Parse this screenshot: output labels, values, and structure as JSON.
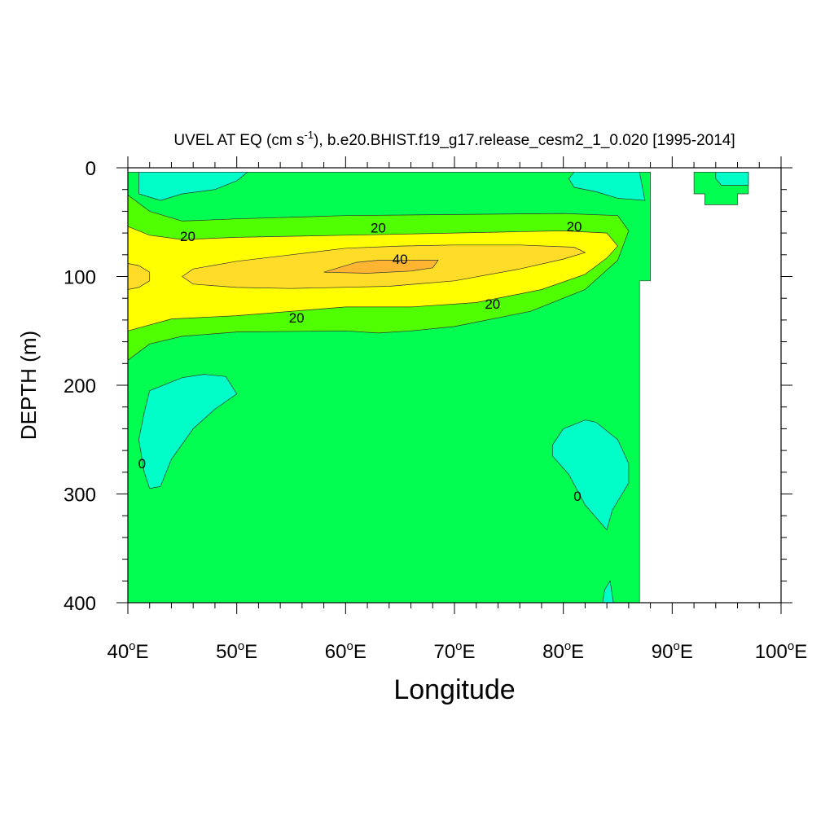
{
  "chart_data": {
    "type": "contour",
    "title_prefix": "UVEL AT EQ (cm s",
    "title_exponent": "-1",
    "title_suffix": "), b.e20.BHIST.f19_g17.release_cesm2_1_0.020 [1995-2014]",
    "xlabel": "Longitude",
    "ylabel": "DEPTH (m)",
    "xlim": [
      40,
      100
    ],
    "ylim": [
      0,
      400
    ],
    "y_inverted": true,
    "x_ticks": [
      {
        "value": 40,
        "label": "40",
        "sup": "o",
        "suffix": "E"
      },
      {
        "value": 50,
        "label": "50",
        "sup": "o",
        "suffix": "E"
      },
      {
        "value": 60,
        "label": "60",
        "sup": "o",
        "suffix": "E"
      },
      {
        "value": 70,
        "label": "70",
        "sup": "o",
        "suffix": "E"
      },
      {
        "value": 80,
        "label": "80",
        "sup": "o",
        "suffix": "E"
      },
      {
        "value": 90,
        "label": "90",
        "sup": "o",
        "suffix": "E"
      },
      {
        "value": 100,
        "label": "100",
        "sup": "o",
        "suffix": "E"
      }
    ],
    "y_ticks": [
      {
        "value": 0,
        "label": "0"
      },
      {
        "value": 100,
        "label": "100"
      },
      {
        "value": 200,
        "label": "200"
      },
      {
        "value": 300,
        "label": "300"
      },
      {
        "value": 400,
        "label": "400"
      }
    ],
    "contour_interval": 10,
    "colors": {
      "negative": "#00ffc8",
      "0_to_10": "#00ff50",
      "10_to_20": "#50ff00",
      "20_to_30": "#ffff00",
      "30_to_40": "#ffdc28",
      "40_to_50": "#ffb432"
    },
    "regions": [
      {
        "name": "ocean-0-10",
        "color_key": "0_to_10",
        "points": [
          [
            40,
            4
          ],
          [
            88,
            4
          ],
          [
            88,
            104
          ],
          [
            87,
            104
          ],
          [
            87,
            400
          ],
          [
            40,
            400
          ]
        ]
      },
      {
        "name": "ocean-0-10-east-patch",
        "color_key": "0_to_10",
        "points": [
          [
            92,
            4
          ],
          [
            97,
            4
          ],
          [
            97,
            24
          ],
          [
            96,
            24
          ],
          [
            96,
            34
          ],
          [
            93,
            34
          ],
          [
            93,
            24
          ],
          [
            92,
            24
          ]
        ]
      },
      {
        "name": "neg-surface-west",
        "color_key": "negative",
        "points": [
          [
            41,
            4
          ],
          [
            51,
            4
          ],
          [
            50,
            12
          ],
          [
            48,
            20
          ],
          [
            45,
            24
          ],
          [
            43,
            30
          ],
          [
            41,
            24
          ]
        ]
      },
      {
        "name": "neg-surface-east",
        "color_key": "negative",
        "points": [
          [
            81,
            4
          ],
          [
            86,
            4
          ],
          [
            87,
            4
          ],
          [
            87.5,
            30
          ],
          [
            85,
            28
          ],
          [
            83,
            22
          ],
          [
            81,
            18
          ],
          [
            80.5,
            10
          ]
        ]
      },
      {
        "name": "neg-surface-far-east",
        "color_key": "negative",
        "points": [
          [
            94,
            4
          ],
          [
            97,
            4
          ],
          [
            97,
            16
          ],
          [
            94.5,
            16
          ],
          [
            94,
            10
          ]
        ]
      },
      {
        "name": "neg-deep-west",
        "color_key": "negative",
        "points": [
          [
            42,
            205
          ],
          [
            45,
            193
          ],
          [
            47,
            190
          ],
          [
            49,
            192
          ],
          [
            50,
            208
          ],
          [
            48,
            222
          ],
          [
            46,
            240
          ],
          [
            44,
            268
          ],
          [
            43,
            293
          ],
          [
            42,
            295
          ],
          [
            41.5,
            280
          ],
          [
            41,
            250
          ],
          [
            41.5,
            225
          ]
        ]
      },
      {
        "name": "neg-deep-east",
        "color_key": "negative",
        "points": [
          [
            80,
            240
          ],
          [
            82,
            232
          ],
          [
            83,
            234
          ],
          [
            85,
            250
          ],
          [
            86,
            272
          ],
          [
            86,
            290
          ],
          [
            84.5,
            315
          ],
          [
            84,
            333
          ],
          [
            82,
            310
          ],
          [
            80.5,
            282
          ],
          [
            79,
            265
          ],
          [
            79,
            255
          ]
        ]
      },
      {
        "name": "neg-deep-east-bottom",
        "color_key": "negative",
        "points": [
          [
            83.8,
            388
          ],
          [
            84.3,
            380
          ],
          [
            84.6,
            400
          ],
          [
            83.6,
            400
          ]
        ]
      },
      {
        "name": "band-10-20",
        "color_key": "10_to_20",
        "points": [
          [
            40,
            25
          ],
          [
            42,
            40
          ],
          [
            45,
            49
          ],
          [
            50,
            47
          ],
          [
            60,
            44
          ],
          [
            70,
            43
          ],
          [
            80,
            42
          ],
          [
            85,
            44
          ],
          [
            86,
            58
          ],
          [
            85,
            85
          ],
          [
            82,
            112
          ],
          [
            77,
            132
          ],
          [
            70,
            146
          ],
          [
            66,
            150
          ],
          [
            63,
            152
          ],
          [
            60,
            150
          ],
          [
            50,
            151
          ],
          [
            45,
            155
          ],
          [
            42,
            162
          ],
          [
            40,
            177
          ]
        ]
      },
      {
        "name": "band-20-30",
        "color_key": "20_to_30",
        "points": [
          [
            40,
            54
          ],
          [
            42,
            62
          ],
          [
            45,
            66
          ],
          [
            50,
            64
          ],
          [
            60,
            62
          ],
          [
            70,
            60
          ],
          [
            80,
            58
          ],
          [
            84,
            60
          ],
          [
            85,
            72
          ],
          [
            84,
            83
          ],
          [
            82,
            98
          ],
          [
            78,
            112
          ],
          [
            72,
            124
          ],
          [
            66,
            128
          ],
          [
            60,
            128
          ],
          [
            50,
            136
          ],
          [
            44,
            139
          ],
          [
            40,
            150
          ]
        ]
      },
      {
        "name": "band-30-40",
        "color_key": "30_to_40",
        "points": [
          [
            46,
            93
          ],
          [
            50,
            86
          ],
          [
            55,
            80
          ],
          [
            60,
            74
          ],
          [
            65,
            72
          ],
          [
            70,
            71
          ],
          [
            76,
            71
          ],
          [
            81,
            73
          ],
          [
            82,
            78
          ],
          [
            80,
            84
          ],
          [
            76,
            93
          ],
          [
            70,
            104
          ],
          [
            64,
            109
          ],
          [
            55,
            111
          ],
          [
            50,
            110
          ],
          [
            46,
            107
          ],
          [
            45,
            100
          ]
        ]
      },
      {
        "name": "band-30-40-west-edge",
        "color_key": "30_to_40",
        "points": [
          [
            40,
            88
          ],
          [
            41,
            90
          ],
          [
            42,
            96
          ],
          [
            42,
            104
          ],
          [
            41,
            110
          ],
          [
            40,
            112
          ]
        ]
      },
      {
        "name": "core-40-50",
        "color_key": "40_to_50",
        "points": [
          [
            58,
            96
          ],
          [
            61,
            87
          ],
          [
            63,
            85
          ],
          [
            66,
            85
          ],
          [
            68.5,
            85
          ],
          [
            68,
            92
          ],
          [
            66,
            95
          ],
          [
            62,
            97
          ]
        ]
      }
    ],
    "contour_labels": [
      {
        "text": "20",
        "x": 45.5,
        "y": 63
      },
      {
        "text": "20",
        "x": 63,
        "y": 55
      },
      {
        "text": "20",
        "x": 81,
        "y": 54
      },
      {
        "text": "40",
        "x": 65,
        "y": 84
      },
      {
        "text": "20",
        "x": 73.5,
        "y": 125
      },
      {
        "text": "20",
        "x": 55.5,
        "y": 138
      },
      {
        "text": "0",
        "x": 41.3,
        "y": 272
      },
      {
        "text": "0",
        "x": 81.3,
        "y": 302
      }
    ]
  }
}
